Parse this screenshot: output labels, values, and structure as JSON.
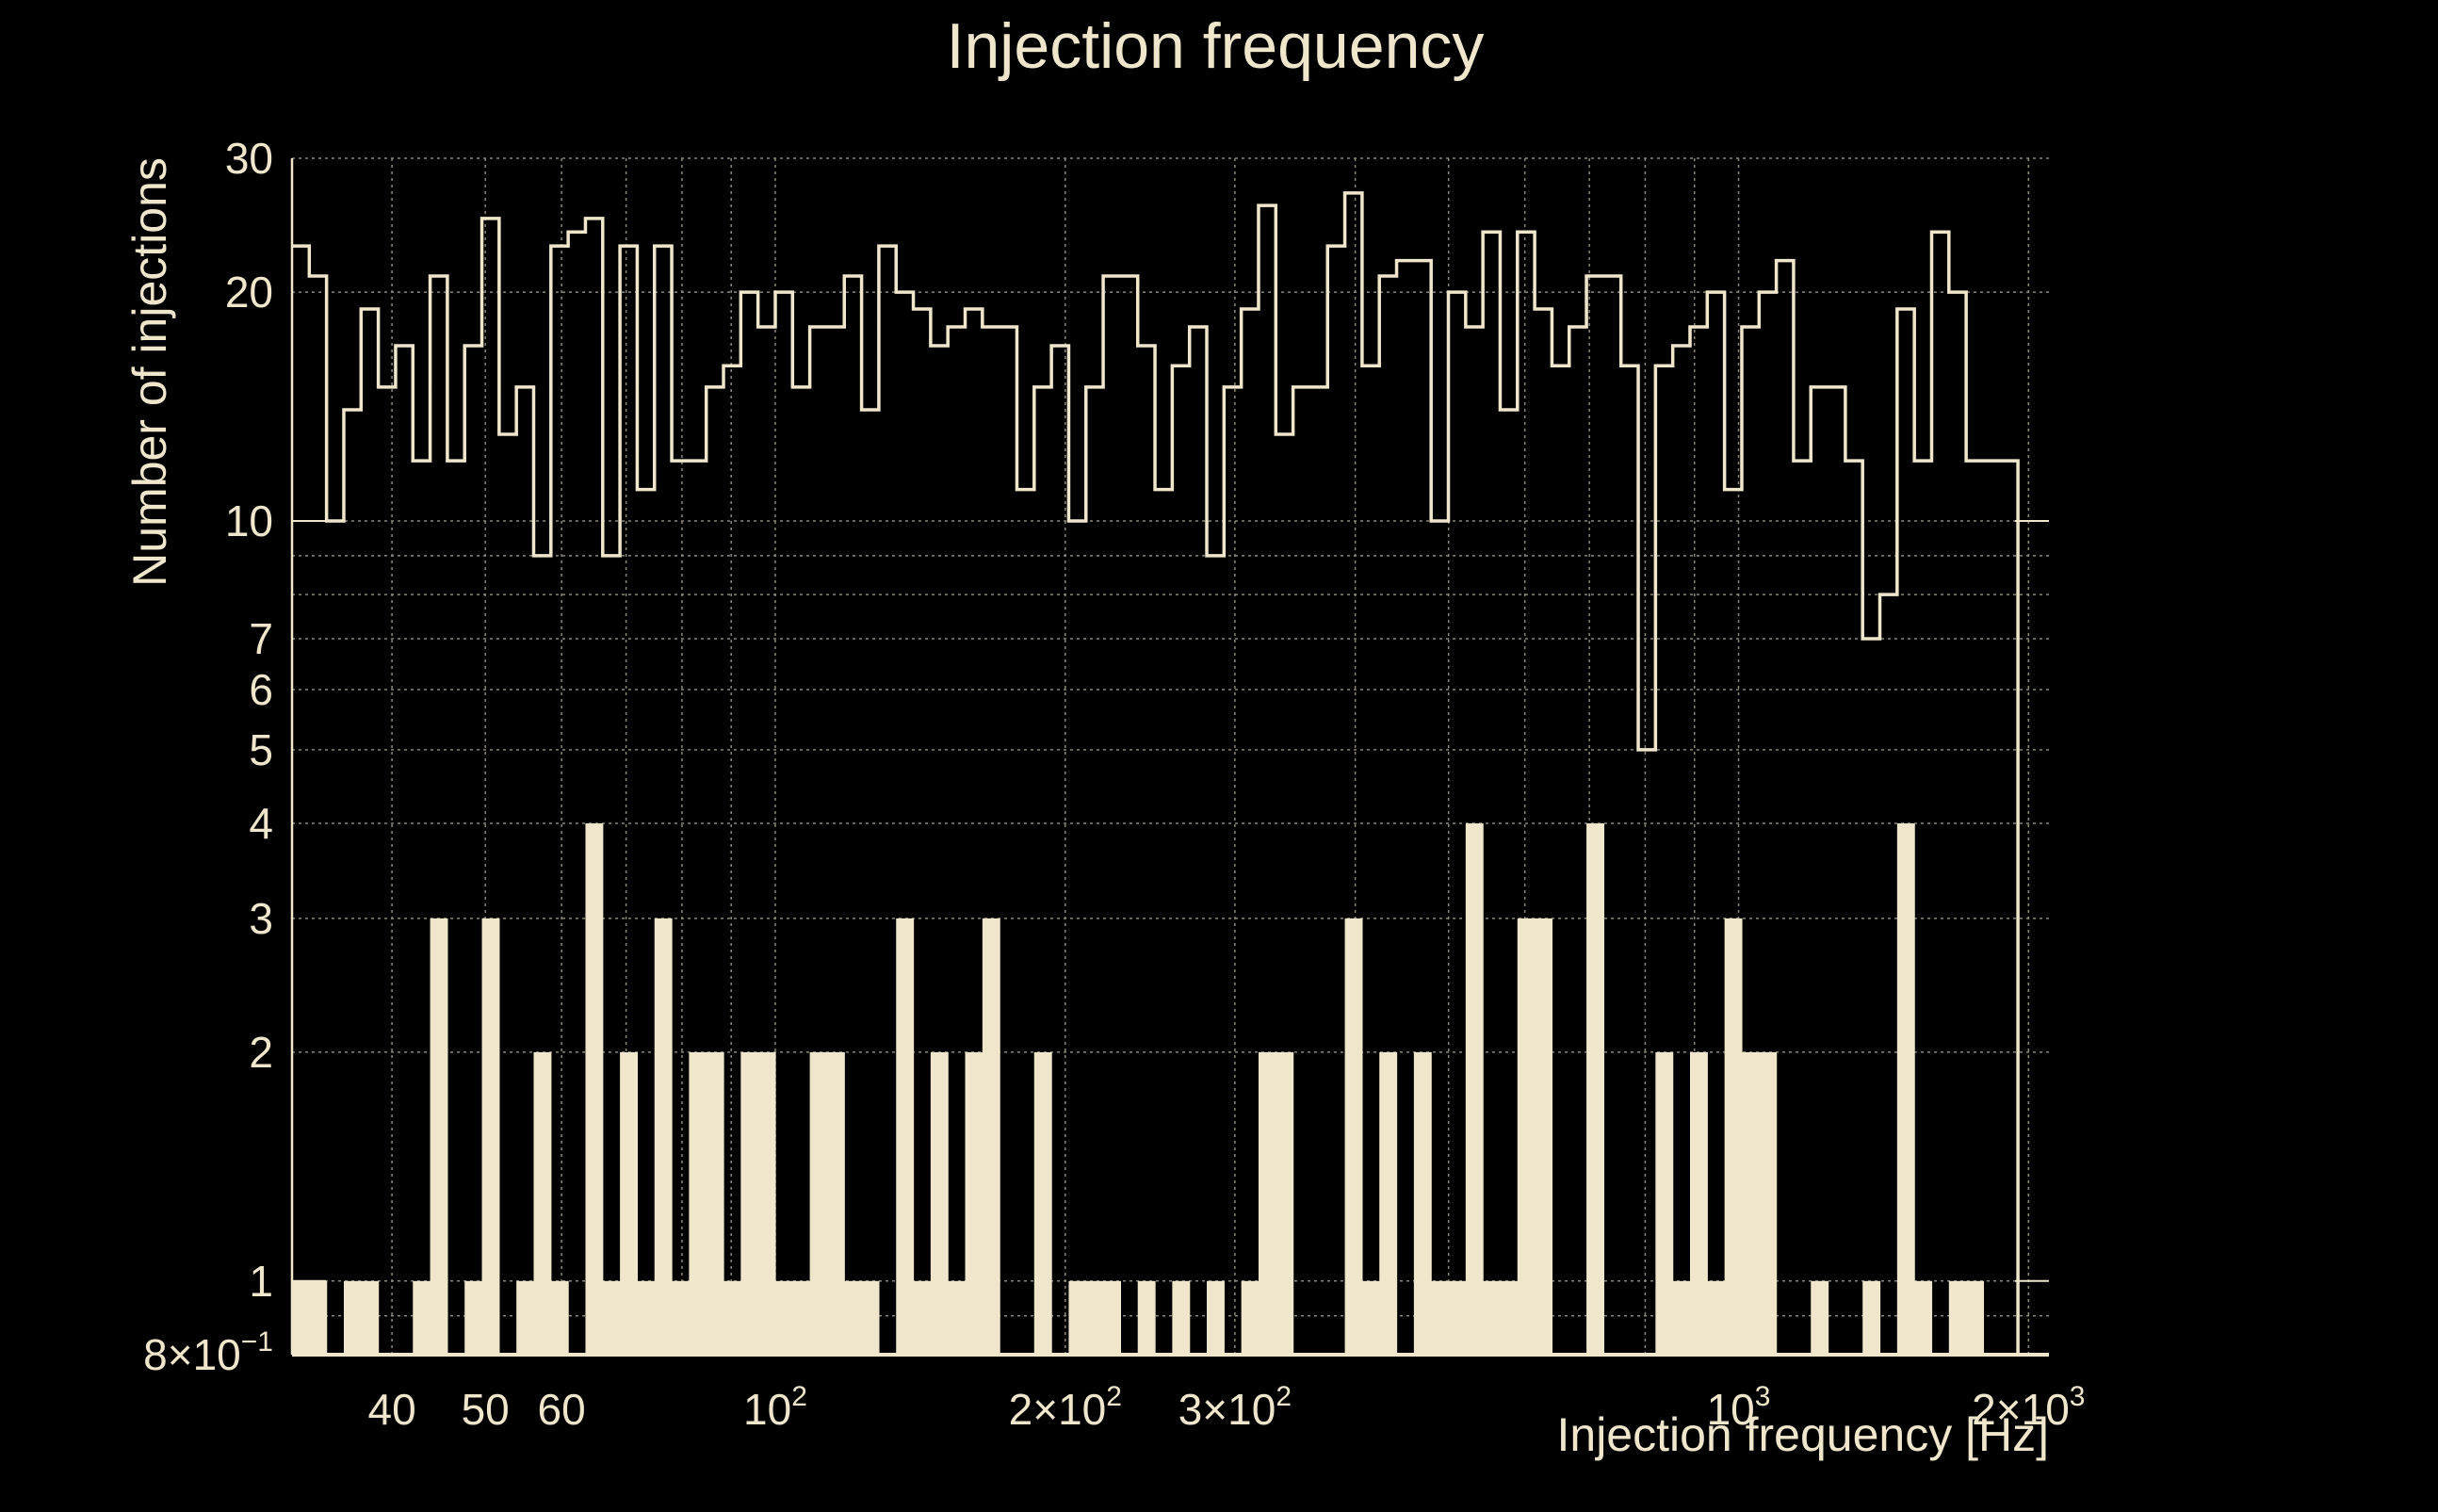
{
  "colors": {
    "background": "#000000",
    "foreground": "#EFE6CB",
    "grid": "#8C8677"
  },
  "chart_data": {
    "type": "bar",
    "title": "Injection frequency",
    "xlabel": "Injection frequency [Hz]",
    "ylabel": "Number of injections",
    "xscale": "log",
    "yscale": "log",
    "xlim": [
      31.5,
      2100
    ],
    "ylim": [
      0.8,
      30
    ],
    "grid": true,
    "legend": "none",
    "x_ticks": [
      {
        "value": 40,
        "label": "40"
      },
      {
        "value": 50,
        "label": "50"
      },
      {
        "value": 60,
        "label": "60"
      },
      {
        "value": 100,
        "label": "10",
        "sup": "2"
      },
      {
        "value": 200,
        "label": "2×10",
        "sup": "2"
      },
      {
        "value": 300,
        "label": "3×10",
        "sup": "2"
      },
      {
        "value": 1000,
        "label": "10",
        "sup": "3"
      },
      {
        "value": 2000,
        "label": "2×10",
        "sup": "3"
      }
    ],
    "y_ticks": [
      {
        "value": 0.8,
        "label": "8×10",
        "sup": "−1"
      },
      {
        "value": 1,
        "label": "1"
      },
      {
        "value": 2,
        "label": "2"
      },
      {
        "value": 3,
        "label": "3"
      },
      {
        "value": 4,
        "label": "4"
      },
      {
        "value": 5,
        "label": "5"
      },
      {
        "value": 6,
        "label": "6"
      },
      {
        "value": 7,
        "label": "7"
      },
      {
        "value": 10,
        "label": "10"
      },
      {
        "value": 20,
        "label": "20"
      },
      {
        "value": 30,
        "label": "30"
      }
    ],
    "bin_edges_range": [
      31.5,
      1950
    ],
    "bin_count": 100,
    "series": [
      {
        "style": "step-outline",
        "values": [
          23,
          21,
          10,
          14,
          19,
          15,
          17,
          12,
          21,
          12,
          17,
          25,
          13,
          15,
          9,
          23,
          24,
          25,
          9,
          23,
          11,
          23,
          12,
          12,
          15,
          16,
          20,
          18,
          20,
          15,
          18,
          18,
          21,
          14,
          23,
          20,
          19,
          17,
          18,
          19,
          18,
          18,
          11,
          15,
          17,
          10,
          15,
          21,
          21,
          17,
          11,
          16,
          18,
          9,
          15,
          19,
          26,
          13,
          15,
          15,
          23,
          27,
          16,
          21,
          22,
          22,
          10,
          20,
          18,
          24,
          14,
          24,
          19,
          16,
          18,
          21,
          21,
          16,
          5,
          16,
          17,
          18,
          20,
          11,
          18,
          20,
          22,
          12,
          15,
          15,
          12,
          7,
          8,
          19,
          12,
          24,
          20,
          12,
          12,
          12
        ]
      },
      {
        "style": "filled",
        "values": [
          1,
          1,
          0,
          1,
          1,
          0,
          0,
          1,
          3,
          0,
          1,
          3,
          0,
          1,
          2,
          1,
          0,
          4,
          1,
          2,
          1,
          3,
          1,
          2,
          2,
          1,
          2,
          2,
          1,
          1,
          2,
          2,
          1,
          1,
          0,
          3,
          1,
          2,
          1,
          2,
          3,
          0,
          0,
          2,
          0,
          1,
          1,
          1,
          0,
          1,
          0,
          1,
          0,
          1,
          0,
          1,
          2,
          2,
          0,
          0,
          0,
          3,
          1,
          2,
          0,
          2,
          1,
          1,
          4,
          1,
          1,
          3,
          3,
          0,
          0,
          4,
          0,
          0,
          0,
          2,
          1,
          2,
          1,
          3,
          2,
          2,
          0,
          0,
          1,
          0,
          0,
          1,
          0,
          4,
          1,
          0,
          1,
          1,
          0,
          0
        ]
      }
    ]
  }
}
